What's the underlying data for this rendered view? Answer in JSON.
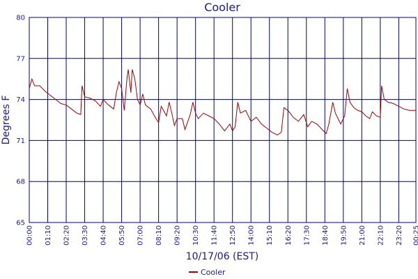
{
  "chart_data": {
    "type": "line",
    "title": "Cooler",
    "y_label": "Degrees F",
    "x_label": "10/17/06 (EST)",
    "x": [
      0,
      10,
      20,
      40,
      60,
      80,
      100,
      120,
      140,
      160,
      180,
      195,
      200,
      210,
      230,
      250,
      270,
      280,
      300,
      320,
      330,
      340,
      350,
      360,
      370,
      375,
      385,
      390,
      400,
      410,
      420,
      430,
      440,
      460,
      480,
      490,
      500,
      520,
      530,
      540,
      550,
      560,
      580,
      590,
      610,
      620,
      630,
      640,
      660,
      680,
      700,
      720,
      740,
      760,
      770,
      780,
      790,
      800,
      820,
      840,
      860,
      880,
      900,
      920,
      940,
      955,
      965,
      980,
      1000,
      1020,
      1040,
      1055,
      1070,
      1090,
      1110,
      1125,
      1135,
      1150,
      1160,
      1180,
      1195,
      1205,
      1215,
      1230,
      1245,
      1260,
      1275,
      1290,
      1300,
      1315,
      1330,
      1335,
      1345,
      1360,
      1380,
      1400,
      1420,
      1440,
      1465
    ],
    "series": [
      {
        "name": "Cooler",
        "color": "#a00000",
        "values": [
          74.8,
          75.5,
          75.0,
          75.0,
          74.6,
          74.3,
          74.0,
          73.7,
          73.6,
          73.3,
          73.0,
          72.9,
          75.0,
          74.2,
          74.1,
          73.9,
          73.5,
          74.0,
          73.6,
          73.3,
          74.5,
          75.3,
          74.8,
          73.2,
          75.5,
          76.2,
          74.5,
          76.2,
          75.5,
          74.0,
          73.6,
          74.4,
          73.6,
          73.3,
          72.6,
          72.3,
          73.5,
          72.8,
          73.8,
          73.0,
          72.1,
          72.6,
          72.6,
          71.8,
          72.9,
          73.8,
          73.0,
          72.6,
          73.0,
          72.8,
          72.6,
          72.2,
          71.7,
          72.2,
          71.7,
          72.0,
          73.8,
          73.0,
          73.2,
          72.4,
          72.7,
          72.2,
          71.9,
          71.6,
          71.4,
          71.6,
          73.4,
          73.2,
          72.7,
          72.4,
          72.9,
          72.0,
          72.4,
          72.2,
          71.8,
          71.5,
          72.2,
          73.8,
          73.0,
          72.2,
          72.8,
          74.8,
          73.8,
          73.4,
          73.2,
          73.1,
          72.8,
          72.6,
          73.1,
          72.8,
          72.7,
          75.0,
          74.0,
          73.8,
          73.7,
          73.5,
          73.3,
          73.2,
          73.2
        ]
      }
    ],
    "xlim": [
      0,
      1465
    ],
    "xticks": [
      {
        "value": 0,
        "label": "00:00"
      },
      {
        "value": 70,
        "label": "01:10"
      },
      {
        "value": 140,
        "label": "02:20"
      },
      {
        "value": 210,
        "label": "03:30"
      },
      {
        "value": 280,
        "label": "04:40"
      },
      {
        "value": 350,
        "label": "05:50"
      },
      {
        "value": 420,
        "label": "07:00"
      },
      {
        "value": 490,
        "label": "08:10"
      },
      {
        "value": 560,
        "label": "09:20"
      },
      {
        "value": 630,
        "label": "10:30"
      },
      {
        "value": 700,
        "label": "11:40"
      },
      {
        "value": 770,
        "label": "12:50"
      },
      {
        "value": 840,
        "label": "14:00"
      },
      {
        "value": 910,
        "label": "15:10"
      },
      {
        "value": 980,
        "label": "16:20"
      },
      {
        "value": 1050,
        "label": "17:30"
      },
      {
        "value": 1120,
        "label": "18:40"
      },
      {
        "value": 1190,
        "label": "19:50"
      },
      {
        "value": 1260,
        "label": "21:00"
      },
      {
        "value": 1330,
        "label": "22:10"
      },
      {
        "value": 1400,
        "label": "23:20"
      },
      {
        "value": 1465,
        "label": "00:25"
      }
    ],
    "ylim": [
      65,
      80
    ],
    "yticks": [
      65,
      68,
      71,
      74,
      77,
      80
    ],
    "grid": true,
    "legend": "bottom"
  }
}
